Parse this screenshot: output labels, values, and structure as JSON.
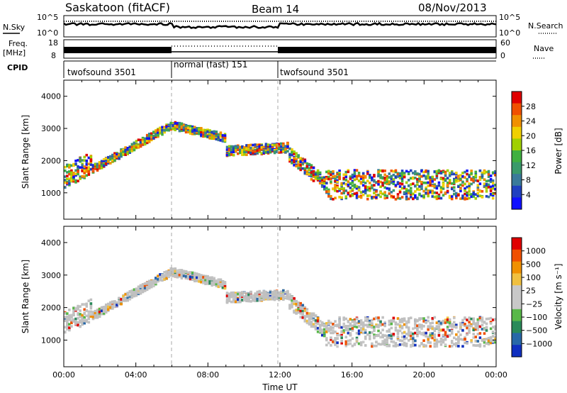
{
  "header": {
    "station": "Saskatoon  (fitACF)",
    "beam": "Beam 14",
    "date": "08/Nov/2013"
  },
  "strips": {
    "sky_label": "N.Sky",
    "search_label": "N.Search",
    "sky_ticks": [
      "10^5",
      "10^0"
    ],
    "search_ticks": [
      "10^5",
      "10^0"
    ],
    "freq_label_1": "Freq.",
    "freq_label_2": "[MHz]",
    "freq_ticks": [
      "18",
      "8"
    ],
    "nave_label": "Nave",
    "nave_ticks": [
      "60",
      "0"
    ],
    "cpid_label": "CPID",
    "modes": [
      {
        "name": "twofsound 3501",
        "start_h": 0,
        "end_h": 6
      },
      {
        "name": "normal (fast) 151",
        "start_h": 6,
        "end_h": 12
      },
      {
        "name": "twofsound 3501",
        "start_h": 12,
        "end_h": 24
      }
    ]
  },
  "chart_data": [
    {
      "type": "heatmap",
      "panel": "power",
      "ylabel": "Slant Range [km]",
      "xlim": [
        0,
        24
      ],
      "ylim": [
        180,
        4500
      ],
      "yticks": [
        "1000",
        "2000",
        "3000",
        "4000"
      ],
      "colorbar_label": "Power [dB]",
      "colorbar_ticks": [
        "4",
        "8",
        "12",
        "16",
        "20",
        "24",
        "28"
      ],
      "scatter_bands": [
        {
          "from_h": 0.0,
          "to_h": 1.5,
          "center_km": [
            1500,
            1900
          ],
          "width_km": 700
        },
        {
          "from_h": 1.5,
          "to_h": 6.0,
          "center_km": [
            1700,
            3100
          ],
          "width_km": 250
        },
        {
          "from_h": 6.0,
          "to_h": 9.0,
          "center_km": [
            3100,
            2700
          ],
          "width_km": 250
        },
        {
          "from_h": 9.0,
          "to_h": 12.5,
          "center_km": [
            2300,
            2400
          ],
          "width_km": 300
        },
        {
          "from_h": 12.5,
          "to_h": 14.5,
          "center_km": [
            2200,
            1300
          ],
          "width_km": 450
        },
        {
          "from_h": 14.5,
          "to_h": 24.0,
          "center_km": [
            1250,
            1250
          ],
          "width_km": 900
        }
      ]
    },
    {
      "type": "heatmap",
      "panel": "velocity",
      "ylabel": "Slant Range [km]",
      "xlabel": "Time UT",
      "xlim": [
        0,
        24
      ],
      "ylim": [
        180,
        4500
      ],
      "yticks": [
        "1000",
        "2000",
        "3000",
        "4000"
      ],
      "xticks": [
        "00:00",
        "04:00",
        "08:00",
        "12:00",
        "16:00",
        "20:00",
        "00:00"
      ],
      "colorbar_label": "Velocity [m s⁻¹]",
      "colorbar_ticks": [
        "1000",
        "500",
        "100",
        "25",
        "−25",
        "−100",
        "−500",
        "−1000"
      ],
      "scatter_bands": [
        {
          "from_h": 0.0,
          "to_h": 1.5,
          "center_km": [
            1500,
            1900
          ],
          "width_km": 700
        },
        {
          "from_h": 1.5,
          "to_h": 6.0,
          "center_km": [
            1700,
            3100
          ],
          "width_km": 250
        },
        {
          "from_h": 6.0,
          "to_h": 9.0,
          "center_km": [
            3100,
            2700
          ],
          "width_km": 250
        },
        {
          "from_h": 9.0,
          "to_h": 12.5,
          "center_km": [
            2300,
            2400
          ],
          "width_km": 300
        },
        {
          "from_h": 12.5,
          "to_h": 14.5,
          "center_km": [
            2200,
            1300
          ],
          "width_km": 450
        },
        {
          "from_h": 14.5,
          "to_h": 24.0,
          "center_km": [
            1250,
            1250
          ],
          "width_km": 900
        }
      ]
    }
  ],
  "colors": {
    "power_scale": [
      "#1010ff",
      "#2040c0",
      "#3a7a9a",
      "#3a9a6a",
      "#40b040",
      "#a0d000",
      "#f0d000",
      "#f09000",
      "#f05000",
      "#e00000"
    ],
    "velocity_scale": [
      "#1030c0",
      "#2868a8",
      "#2a8a5a",
      "#58b848",
      "#c8c8c8",
      "#c8c8c8",
      "#f0c040",
      "#f09000",
      "#f05000",
      "#e00000"
    ],
    "ground_scatter": "#c0c0c0"
  }
}
